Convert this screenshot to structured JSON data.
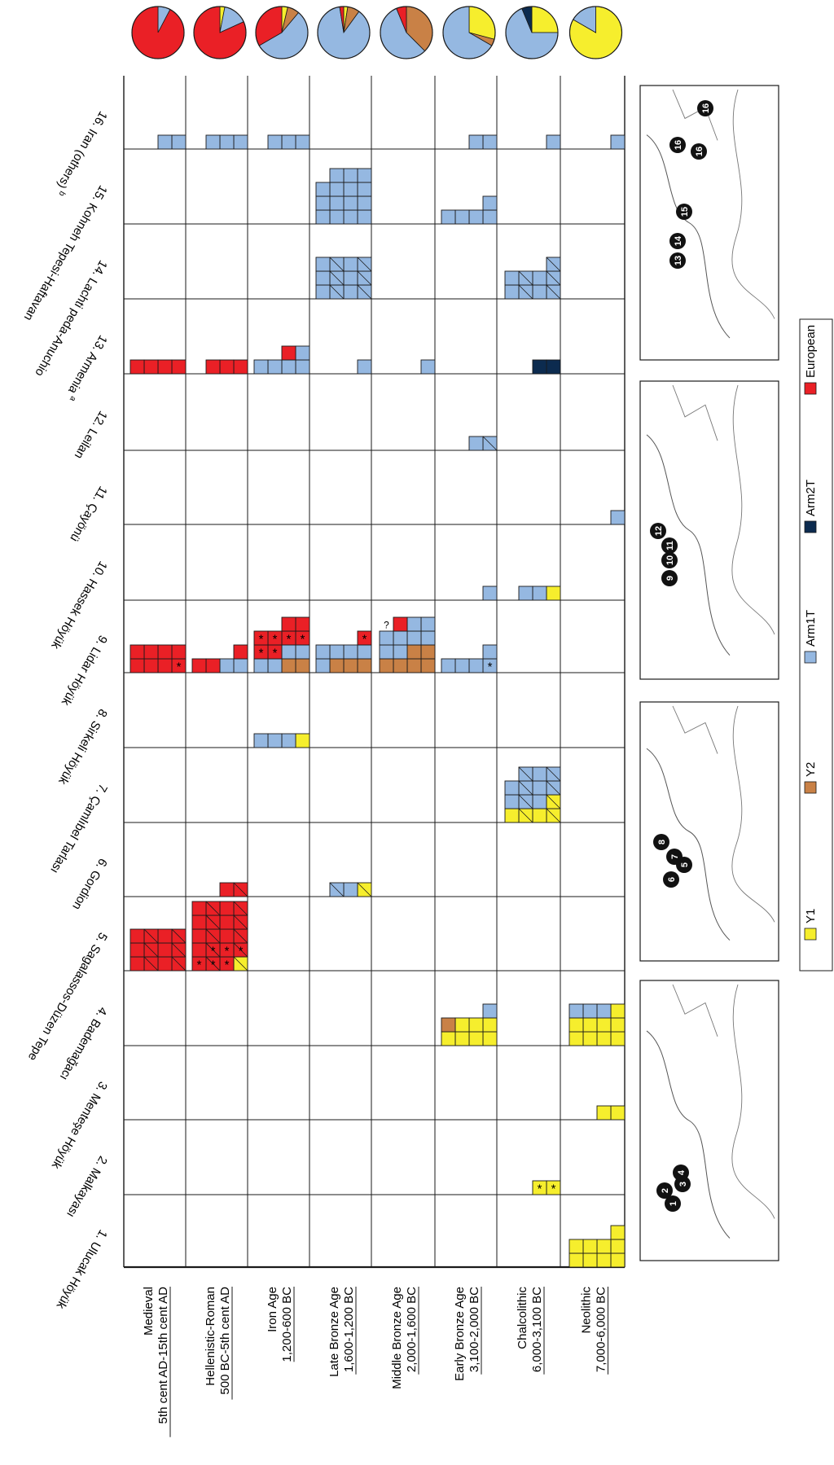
{
  "sites": [
    "1. Ulucak Höyük",
    "2. Malkayası",
    "3. Menteşe Höyük",
    "4. Bademağacı",
    "5. Sagalassos-Düzen Tepe",
    "6. Gordion",
    "7. Çamlıbel Tarlası",
    "8. Sirkeli Höyük",
    "9. Lidar Höyük",
    "10. Hassek Höyük",
    "11. Çayönü",
    "12. Leilan",
    "13. Armenia",
    "14. Lachti peda-Anuchio",
    "15. Kohneh Tepesi-Haftavan",
    "16. Iran (others)"
  ],
  "site_superscripts": {
    "13": "a",
    "16": "b"
  },
  "periods": [
    {
      "name": "Medieval",
      "range": "5th cent AD-15th cent AD"
    },
    {
      "name": "Hellenistic-Roman",
      "range": "500 BC-5th cent AD"
    },
    {
      "name": "Iron Age",
      "range": "1,200-600 BC"
    },
    {
      "name": "Late Bronze Age",
      "range": "1,600-1,200 BC"
    },
    {
      "name": "Middle Bronze Age",
      "range": "2,000-1,600 BC"
    },
    {
      "name": "Early Bronze Age",
      "range": "3,100-2,000 BC"
    },
    {
      "name": "Chalcolithic",
      "range": "6,000-3,100 BC"
    },
    {
      "name": "Neolithic",
      "range": "7,000-6,000 BC"
    }
  ],
  "legend": [
    {
      "key": "Y1",
      "label": "Y1",
      "color": "#f6ee2d"
    },
    {
      "key": "Y2",
      "label": "Y2",
      "color": "#c98146"
    },
    {
      "key": "Arm1T",
      "label": "Arm1T",
      "color": "#95b8e1"
    },
    {
      "key": "Arm2T",
      "label": "Arm2T",
      "color": "#0c2b4f"
    },
    {
      "key": "European",
      "label": "European",
      "color": "#ea2026"
    }
  ],
  "chart_data": {
    "type": "table",
    "description_counts": "Counts of haplotype samples per site (1-16) and period, Y1/Y2/Arm1T/Arm2T/European",
    "cells": [
      {
        "site": 1,
        "period": "Neolithic",
        "counts": {
          "Y1": 9
        }
      },
      {
        "site": 2,
        "period": "Chalcolithic",
        "counts": {
          "Y1": 2
        },
        "asterisks": 2
      },
      {
        "site": 3,
        "period": "Neolithic",
        "counts": {
          "Y1": 2
        }
      },
      {
        "site": 4,
        "period": "Early Bronze Age",
        "counts": {
          "Y1": 7,
          "Y2": 1,
          "Arm1T": 1
        }
      },
      {
        "site": 4,
        "period": "Neolithic",
        "counts": {
          "Y1": 9,
          "Arm1T": 3
        }
      },
      {
        "site": 5,
        "period": "Medieval",
        "counts": {
          "European": 12
        }
      },
      {
        "site": 5,
        "period": "Hellenistic-Roman",
        "counts": {
          "Y1": 1,
          "European": 19
        },
        "asterisks": 6
      },
      {
        "site": 6,
        "period": "Hellenistic-Roman",
        "counts": {
          "European": 2
        }
      },
      {
        "site": 6,
        "period": "Late Bronze Age",
        "counts": {
          "Y1": 1,
          "Arm1T": 2
        }
      },
      {
        "site": 7,
        "period": "Chalcolithic",
        "counts": {
          "Y1": 5,
          "Arm1T": 10
        }
      },
      {
        "site": 8,
        "period": "Iron Age",
        "counts": {
          "Y1": 1,
          "Arm1T": 3
        }
      },
      {
        "site": 9,
        "period": "Medieval",
        "counts": {
          "European": 8
        },
        "asterisks": 1
      },
      {
        "site": 9,
        "period": "Hellenistic-Roman",
        "counts": {
          "Arm1T": 2,
          "European": 3
        }
      },
      {
        "site": 9,
        "period": "Iron Age",
        "counts": {
          "Y2": 2,
          "Arm1T": 4,
          "European": 8
        },
        "asterisks": 6
      },
      {
        "site": 9,
        "period": "Late Bronze Age",
        "counts": {
          "Y2": 3,
          "Arm1T": 5,
          "European": 1
        },
        "asterisks": 1
      },
      {
        "site": 9,
        "period": "Middle Bronze Age",
        "counts": {
          "Y2": 6,
          "Arm1T": 8,
          "European": 1
        },
        "question_marks": 1
      },
      {
        "site": 9,
        "period": "Early Bronze Age",
        "counts": {
          "Arm1T": 5
        },
        "asterisks": 1
      },
      {
        "site": 10,
        "period": "Early Bronze Age",
        "counts": {
          "Arm1T": 1
        }
      },
      {
        "site": 10,
        "period": "Chalcolithic",
        "counts": {
          "Y1": 1,
          "Arm1T": 2
        }
      },
      {
        "site": 11,
        "period": "Neolithic",
        "counts": {
          "Arm1T": 1
        }
      },
      {
        "site": 12,
        "period": "Early Bronze Age",
        "counts": {
          "Arm1T": 2
        }
      },
      {
        "site": 13,
        "period": "Medieval",
        "counts": {
          "European": 4
        }
      },
      {
        "site": 13,
        "period": "Hellenistic-Roman",
        "counts": {
          "European": 3
        }
      },
      {
        "site": 13,
        "period": "Iron Age",
        "counts": {
          "Arm1T": 5,
          "European": 1
        }
      },
      {
        "site": 13,
        "period": "Late Bronze Age",
        "counts": {
          "Arm1T": 1
        }
      },
      {
        "site": 13,
        "period": "Middle Bronze Age",
        "counts": {
          "Arm1T": 1
        }
      },
      {
        "site": 13,
        "period": "Chalcolithic",
        "counts": {
          "Arm2T": 2
        }
      },
      {
        "site": 14,
        "period": "Late Bronze Age",
        "counts": {
          "Arm1T": 12
        }
      },
      {
        "site": 14,
        "period": "Chalcolithic",
        "counts": {
          "Arm1T": 9
        }
      },
      {
        "site": 15,
        "period": "Late Bronze Age",
        "counts": {
          "Arm1T": 15
        }
      },
      {
        "site": 15,
        "period": "Early Bronze Age",
        "counts": {
          "Arm1T": 5
        }
      },
      {
        "site": 16,
        "period": "Medieval",
        "counts": {
          "Arm1T": 2
        }
      },
      {
        "site": 16,
        "period": "Hellenistic-Roman",
        "counts": {
          "Arm1T": 3
        }
      },
      {
        "site": 16,
        "period": "Iron Age",
        "counts": {
          "Arm1T": 3
        }
      },
      {
        "site": 16,
        "period": "Early Bronze Age",
        "counts": {
          "Arm1T": 2
        }
      },
      {
        "site": 16,
        "period": "Chalcolithic",
        "counts": {
          "Arm1T": 1
        }
      },
      {
        "site": 16,
        "period": "Neolithic",
        "counts": {
          "Arm1T": 1
        }
      }
    ],
    "pies": [
      {
        "period": "Medieval",
        "values": {
          "European": 24,
          "Arm1T": 2
        }
      },
      {
        "period": "Hellenistic-Roman",
        "values": {
          "European": 27,
          "Y1": 1,
          "Arm1T": 5
        }
      },
      {
        "period": "Iron Age",
        "values": {
          "European": 9,
          "Arm1T": 15,
          "Y2": 2,
          "Y1": 1
        }
      },
      {
        "period": "Late Bronze Age",
        "values": {
          "Arm1T": 35,
          "Y2": 3,
          "Y1": 1,
          "European": 1
        }
      },
      {
        "period": "Middle Bronze Age",
        "values": {
          "Arm1T": 9,
          "Y2": 6,
          "European": 1
        }
      },
      {
        "period": "Early Bronze Age",
        "values": {
          "Arm1T": 16,
          "Y1": 7,
          "Y2": 1
        }
      },
      {
        "period": "Chalcolithic",
        "values": {
          "Arm1T": 22,
          "Y1": 8,
          "Arm2T": 2
        }
      },
      {
        "period": "Neolithic",
        "values": {
          "Y1": 20,
          "Arm1T": 4
        }
      }
    ],
    "map_labels": [
      [
        "1",
        "2",
        "3",
        "4"
      ],
      [
        "5",
        "6",
        "7",
        "8"
      ],
      [
        "9",
        "10",
        "11",
        "12"
      ],
      [
        "13",
        "14",
        "15",
        "16",
        "16",
        "16"
      ]
    ]
  }
}
